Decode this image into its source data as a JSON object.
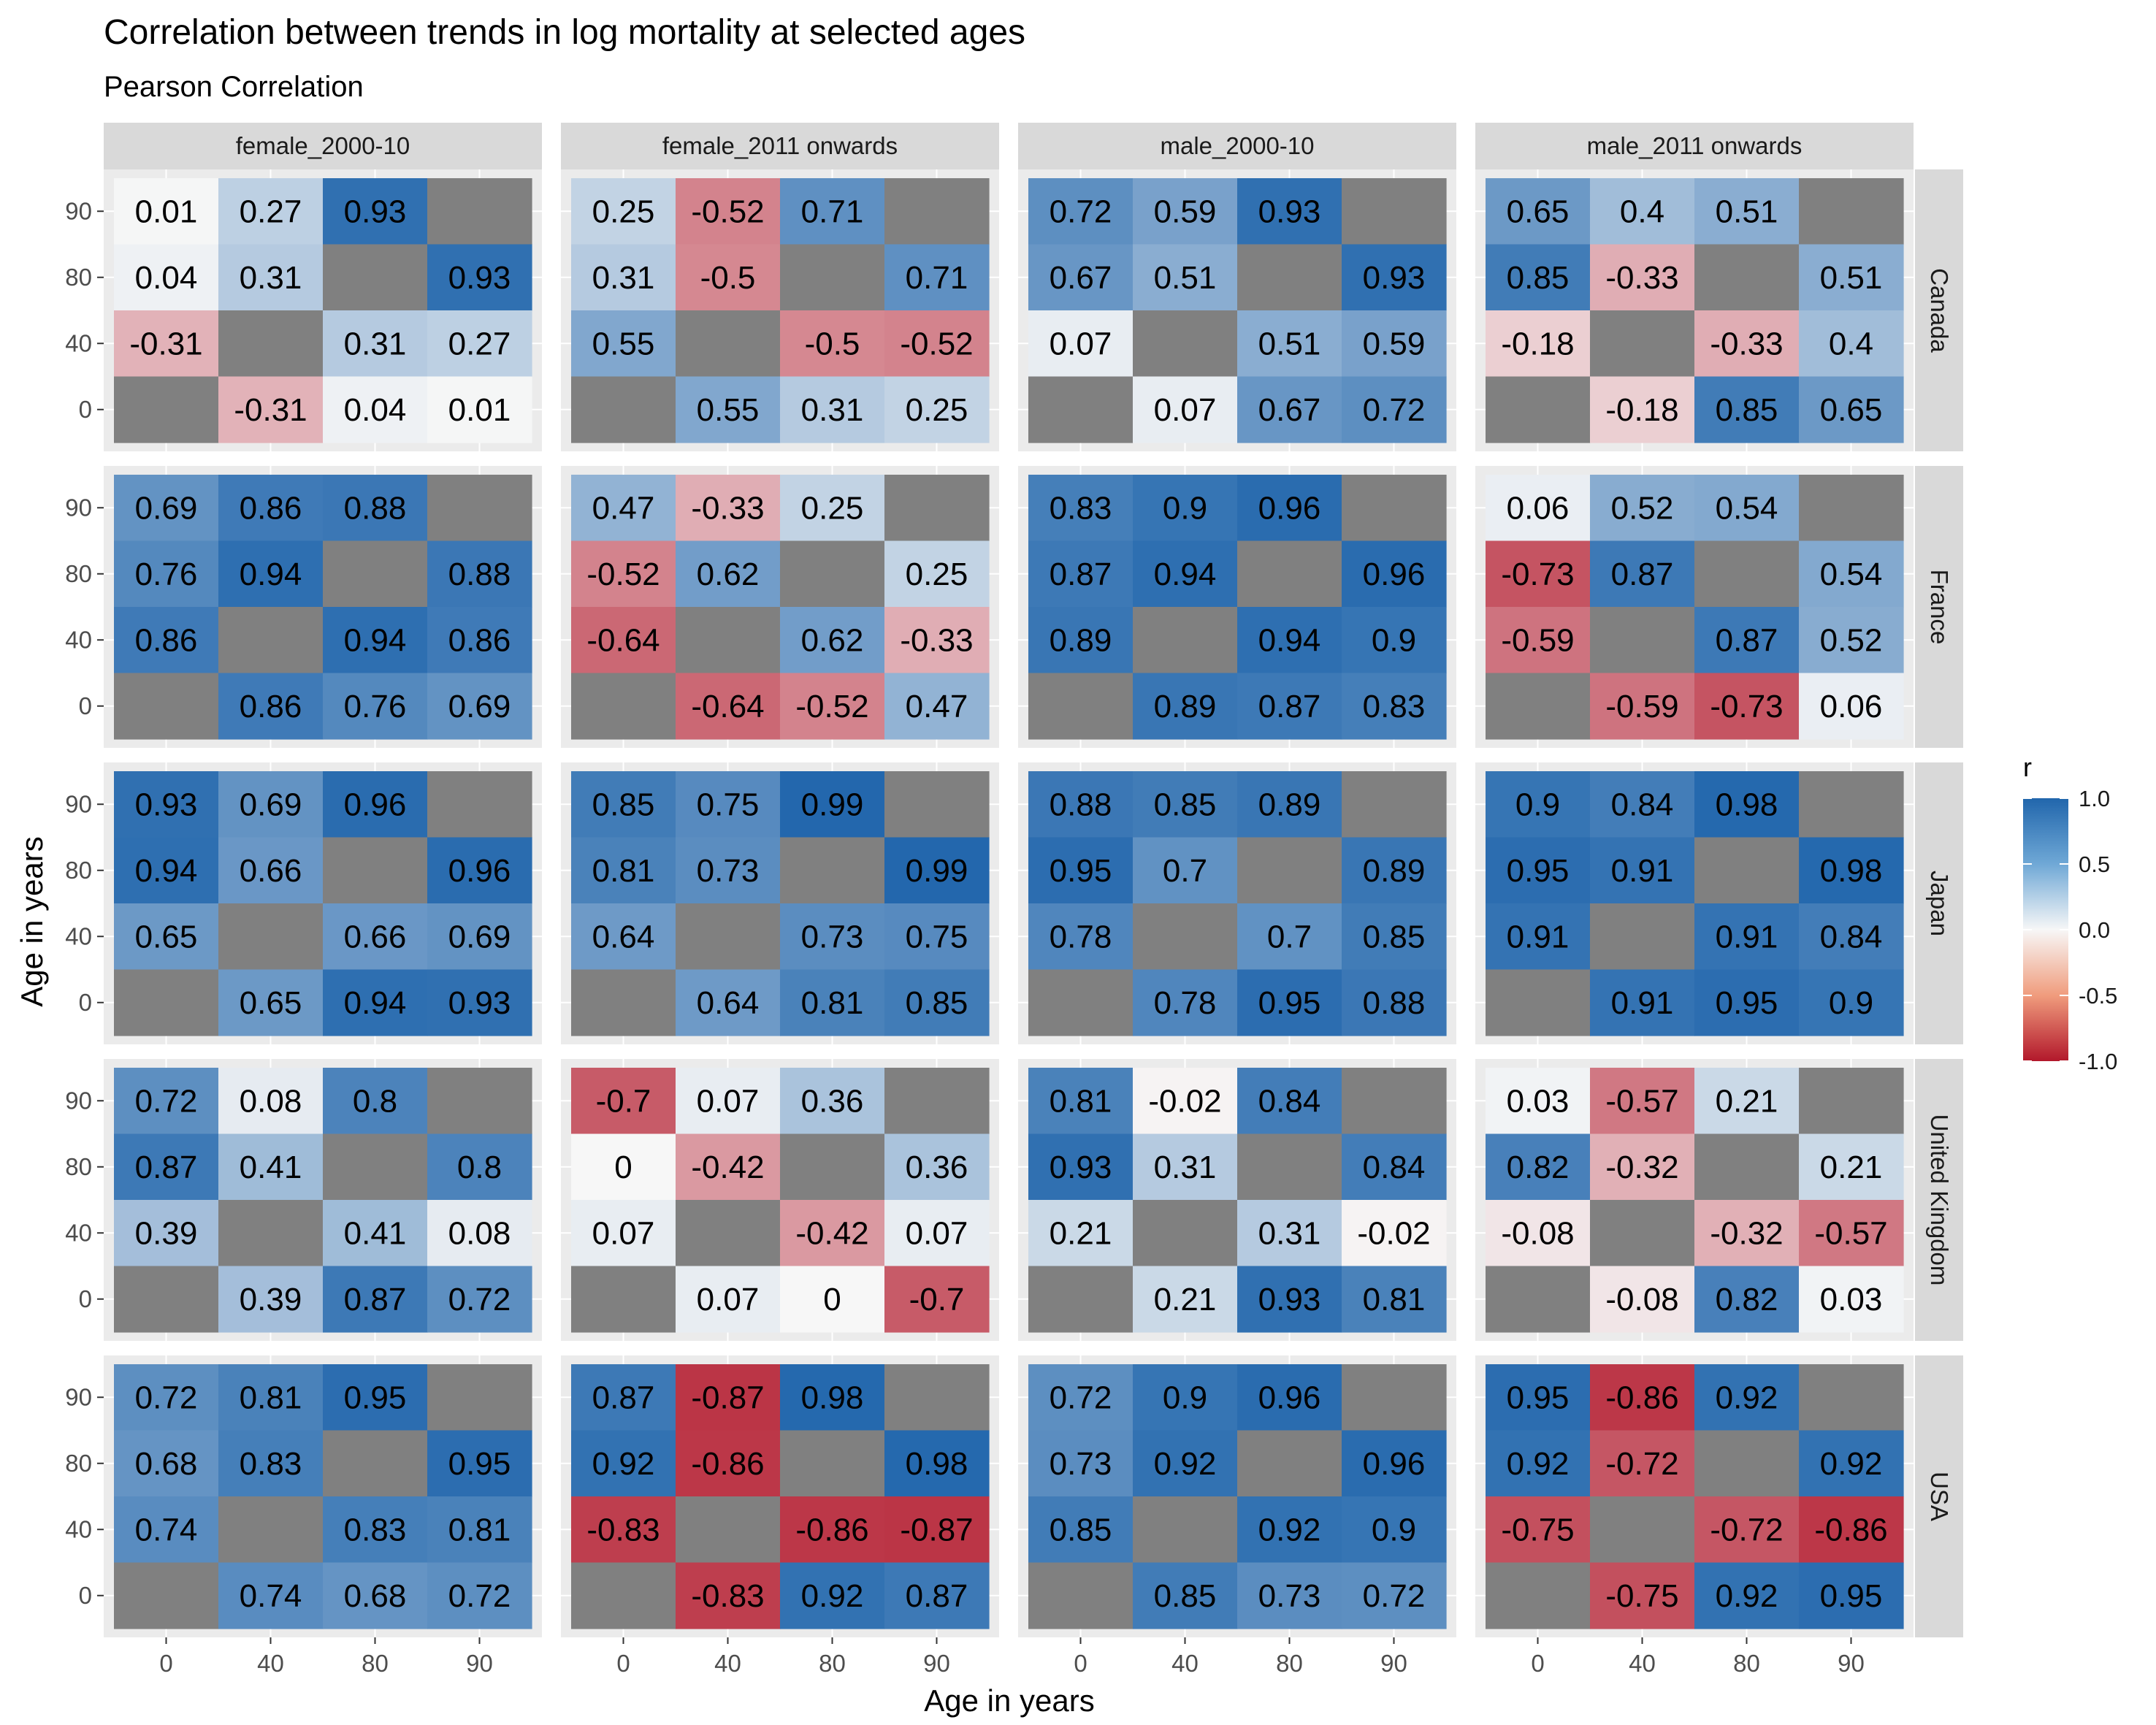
{
  "chart_data": {
    "type": "heatmap",
    "title": "Correlation between trends in log mortality at selected ages",
    "subtitle": "Pearson Correlation",
    "xlabel": "Age in years",
    "ylabel": "Age in years",
    "x_ticks": [
      "0",
      "40",
      "80",
      "90"
    ],
    "y_ticks": [
      "0",
      "40",
      "80",
      "90"
    ],
    "facet_columns": [
      "female_2000-10",
      "female_2011 onwards",
      "male_2000-10",
      "male_2011 onwards"
    ],
    "facet_rows": [
      "Canada",
      "France",
      "Japan",
      "United Kingdom",
      "USA"
    ],
    "legend": {
      "title": "r",
      "ticks": [
        "1.0",
        "0.5",
        "0.0",
        "-0.5",
        "-1.0"
      ],
      "range": [
        -1,
        1
      ],
      "placement": "right",
      "low_color": "#b2182b",
      "mid_color": "#f7f7f7",
      "high_color": "#2166ac"
    },
    "na_color": "#808080",
    "panels": {
      "Canada": {
        "female_2000-10": [
          [
            0.01,
            0.27,
            0.93,
            null
          ],
          [
            0.04,
            0.31,
            null,
            0.93
          ],
          [
            -0.31,
            null,
            0.31,
            0.27
          ],
          [
            null,
            -0.31,
            0.04,
            0.01
          ]
        ],
        "female_2011 onwards": [
          [
            0.25,
            -0.52,
            0.71,
            null
          ],
          [
            0.31,
            -0.5,
            null,
            0.71
          ],
          [
            0.55,
            null,
            -0.5,
            -0.52
          ],
          [
            null,
            0.55,
            0.31,
            0.25
          ]
        ],
        "male_2000-10": [
          [
            0.72,
            0.59,
            0.93,
            null
          ],
          [
            0.67,
            0.51,
            null,
            0.93
          ],
          [
            0.07,
            null,
            0.51,
            0.59
          ],
          [
            null,
            0.07,
            0.67,
            0.72
          ]
        ],
        "male_2011 onwards": [
          [
            0.65,
            0.4,
            0.51,
            null
          ],
          [
            0.85,
            -0.33,
            null,
            0.51
          ],
          [
            -0.18,
            null,
            -0.33,
            0.4
          ],
          [
            null,
            -0.18,
            0.85,
            0.65
          ]
        ]
      },
      "France": {
        "female_2000-10": [
          [
            0.69,
            0.86,
            0.88,
            null
          ],
          [
            0.76,
            0.94,
            null,
            0.88
          ],
          [
            0.86,
            null,
            0.94,
            0.86
          ],
          [
            null,
            0.86,
            0.76,
            0.69
          ]
        ],
        "female_2011 onwards": [
          [
            0.47,
            -0.33,
            0.25,
            null
          ],
          [
            -0.52,
            0.62,
            null,
            0.25
          ],
          [
            -0.64,
            null,
            0.62,
            -0.33
          ],
          [
            null,
            -0.64,
            -0.52,
            0.47
          ]
        ],
        "male_2000-10": [
          [
            0.83,
            0.9,
            0.96,
            null
          ],
          [
            0.87,
            0.94,
            null,
            0.96
          ],
          [
            0.89,
            null,
            0.94,
            0.9
          ],
          [
            null,
            0.89,
            0.87,
            0.83
          ]
        ],
        "male_2011 onwards": [
          [
            0.06,
            0.52,
            0.54,
            null
          ],
          [
            -0.73,
            0.87,
            null,
            0.54
          ],
          [
            -0.59,
            null,
            0.87,
            0.52
          ],
          [
            null,
            -0.59,
            -0.73,
            0.06
          ]
        ]
      },
      "Japan": {
        "female_2000-10": [
          [
            0.93,
            0.69,
            0.96,
            null
          ],
          [
            0.94,
            0.66,
            null,
            0.96
          ],
          [
            0.65,
            null,
            0.66,
            0.69
          ],
          [
            null,
            0.65,
            0.94,
            0.93
          ]
        ],
        "female_2011 onwards": [
          [
            0.85,
            0.75,
            0.99,
            null
          ],
          [
            0.81,
            0.73,
            null,
            0.99
          ],
          [
            0.64,
            null,
            0.73,
            0.75
          ],
          [
            null,
            0.64,
            0.81,
            0.85
          ]
        ],
        "male_2000-10": [
          [
            0.88,
            0.85,
            0.89,
            null
          ],
          [
            0.95,
            0.7,
            null,
            0.89
          ],
          [
            0.78,
            null,
            0.7,
            0.85
          ],
          [
            null,
            0.78,
            0.95,
            0.88
          ]
        ],
        "male_2011 onwards": [
          [
            0.9,
            0.84,
            0.98,
            null
          ],
          [
            0.95,
            0.91,
            null,
            0.98
          ],
          [
            0.91,
            null,
            0.91,
            0.84
          ],
          [
            null,
            0.91,
            0.95,
            0.9
          ]
        ]
      },
      "United Kingdom": {
        "female_2000-10": [
          [
            0.72,
            0.08,
            0.8,
            null
          ],
          [
            0.87,
            0.41,
            null,
            0.8
          ],
          [
            0.39,
            null,
            0.41,
            0.08
          ],
          [
            null,
            0.39,
            0.87,
            0.72
          ]
        ],
        "female_2011 onwards": [
          [
            -0.7,
            0.07,
            0.36,
            null
          ],
          [
            0,
            -0.42,
            null,
            0.36
          ],
          [
            0.07,
            null,
            -0.42,
            0.07
          ],
          [
            null,
            0.07,
            0,
            -0.7
          ]
        ],
        "male_2000-10": [
          [
            0.81,
            -0.02,
            0.84,
            null
          ],
          [
            0.93,
            0.31,
            null,
            0.84
          ],
          [
            0.21,
            null,
            0.31,
            -0.02
          ],
          [
            null,
            0.21,
            0.93,
            0.81
          ]
        ],
        "male_2011 onwards": [
          [
            0.03,
            -0.57,
            0.21,
            null
          ],
          [
            0.82,
            -0.32,
            null,
            0.21
          ],
          [
            -0.08,
            null,
            -0.32,
            -0.57
          ],
          [
            null,
            -0.08,
            0.82,
            0.03
          ]
        ]
      },
      "USA": {
        "female_2000-10": [
          [
            0.72,
            0.81,
            0.95,
            null
          ],
          [
            0.68,
            0.83,
            null,
            0.95
          ],
          [
            0.74,
            null,
            0.83,
            0.81
          ],
          [
            null,
            0.74,
            0.68,
            0.72
          ]
        ],
        "female_2011 onwards": [
          [
            0.87,
            -0.87,
            0.98,
            null
          ],
          [
            0.92,
            -0.86,
            null,
            0.98
          ],
          [
            -0.83,
            null,
            -0.86,
            -0.87
          ],
          [
            null,
            -0.83,
            0.92,
            0.87
          ]
        ],
        "male_2000-10": [
          [
            0.72,
            0.9,
            0.96,
            null
          ],
          [
            0.73,
            0.92,
            null,
            0.96
          ],
          [
            0.85,
            null,
            0.92,
            0.9
          ],
          [
            null,
            0.85,
            0.73,
            0.72
          ]
        ],
        "male_2011 onwards": [
          [
            0.95,
            -0.86,
            0.92,
            null
          ],
          [
            0.92,
            -0.72,
            null,
            0.92
          ],
          [
            -0.75,
            null,
            -0.72,
            -0.86
          ],
          [
            null,
            -0.75,
            0.92,
            0.95
          ]
        ]
      }
    }
  }
}
